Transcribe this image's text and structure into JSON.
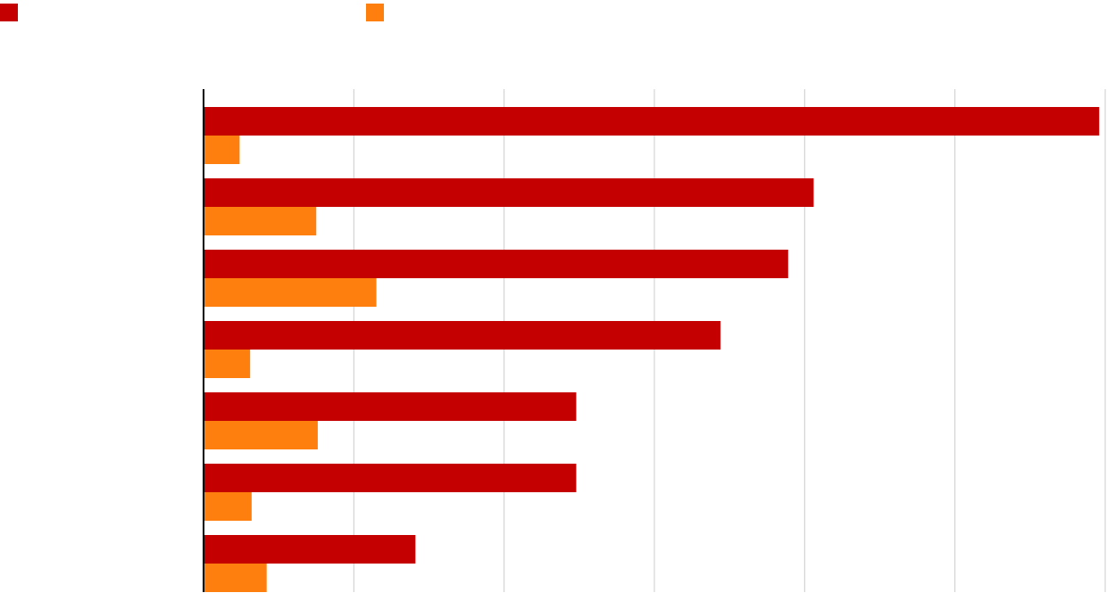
{
  "chart_data": {
    "type": "bar",
    "orientation": "horizontal",
    "title": "",
    "xlabel": "",
    "ylabel": "",
    "xlim": [
      0,
      6
    ],
    "grid": true,
    "legend_position": "top-left",
    "categories": [
      "",
      "",
      "",
      "",
      "",
      "",
      ""
    ],
    "series": [
      {
        "name": "",
        "color": "#c50000",
        "values": [
          5.96,
          4.06,
          3.89,
          3.44,
          2.48,
          2.48,
          1.41
        ]
      },
      {
        "name": "",
        "color": "#ff7f0e",
        "values": [
          0.24,
          0.75,
          1.15,
          0.31,
          0.76,
          0.32,
          0.42
        ]
      }
    ]
  }
}
